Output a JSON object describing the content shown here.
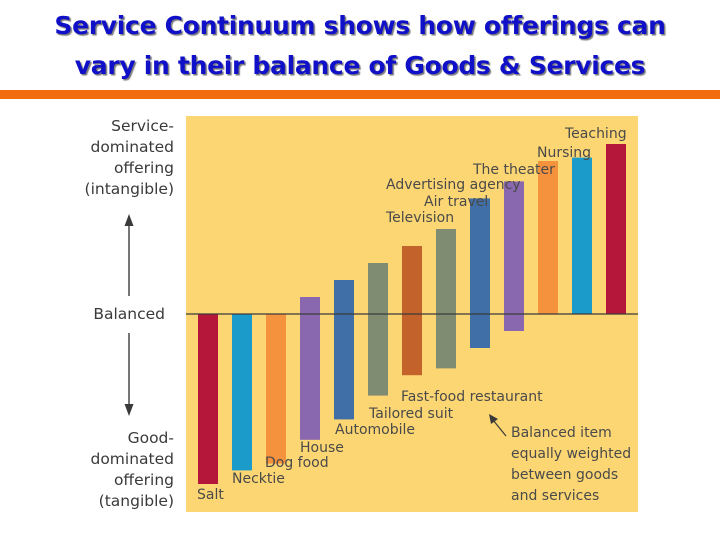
{
  "slide": {
    "title_line1": "Service Continuum shows how offerings can",
    "title_line2": "vary in their balance of Goods & Services"
  },
  "chart_data": {
    "type": "bar",
    "y_axis": {
      "top_label": [
        "Service-",
        "dominated",
        "offering",
        "(intangible)"
      ],
      "middle_label": "Balanced",
      "bottom_label": [
        "Good-",
        "dominated",
        "offering",
        "(tangible)"
      ]
    },
    "categories": [
      "Salt",
      "Necktie",
      "Dog food",
      "House",
      "Automobile",
      "Tailored suit",
      "Fast-food restaurant",
      "Television",
      "Air travel",
      "Advertising agency",
      "The theater",
      "Nursing",
      "Teaching"
    ],
    "series": [
      {
        "values": [
          -5,
          -4.6,
          -4.4,
          0.5,
          1,
          1.5,
          2,
          2.5,
          3.4,
          3.9,
          4.5,
          4.6,
          5
        ]
      }
    ],
    "colors": [
      "#b5173a",
      "#1a9bc9",
      "#f5923e",
      "#8a68b0",
      "#3f6fa6",
      "#808c72",
      "#c4622b",
      "#808c72",
      "#3f6fa6",
      "#8a68b0",
      "#f5923e",
      "#1a9bc9",
      "#b5173a"
    ],
    "bar_ranges": [
      [
        -5,
        0
      ],
      [
        -4.6,
        0
      ],
      [
        -4.4,
        0
      ],
      [
        -3.7,
        0.5
      ],
      [
        -3.1,
        1
      ],
      [
        -2.4,
        1.5
      ],
      [
        -1.8,
        2
      ],
      [
        -1.6,
        2.5
      ],
      [
        -1,
        3.4
      ],
      [
        -0.5,
        3.9
      ],
      [
        0,
        4.5
      ],
      [
        0,
        4.6
      ],
      [
        0,
        5
      ]
    ],
    "annotation": {
      "lines": [
        "Balanced item",
        "equally weighted",
        "between goods",
        "and services"
      ],
      "points_to": "House"
    },
    "ylim": [
      -5.4,
      5.4
    ],
    "grid": false,
    "legend": "none"
  },
  "colors": {
    "title": "#1010c8",
    "title_rule": "#f26b0f",
    "plot_background": "#fcd672"
  }
}
